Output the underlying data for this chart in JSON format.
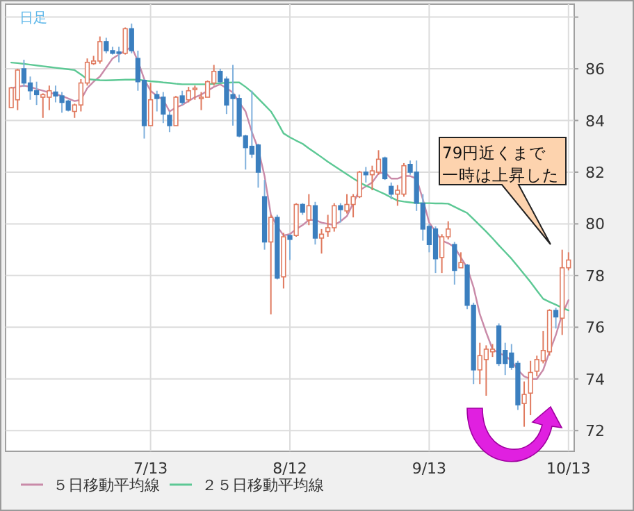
{
  "chart_data": {
    "type": "candlestick",
    "categories": [
      null,
      null,
      null,
      null,
      null,
      null,
      null,
      null,
      null,
      null,
      null,
      null,
      null,
      null,
      null,
      null,
      null,
      null,
      null,
      null,
      null,
      null,
      "7/13",
      null,
      null,
      null,
      null,
      null,
      null,
      null,
      null,
      null,
      null,
      null,
      null,
      null,
      null,
      null,
      null,
      null,
      null,
      null,
      null,
      null,
      "8/12",
      null,
      null,
      null,
      null,
      null,
      null,
      null,
      null,
      null,
      null,
      null,
      null,
      null,
      null,
      null,
      null,
      null,
      null,
      null,
      null,
      null,
      "9/13",
      null,
      null,
      null,
      null,
      null,
      null,
      null,
      null,
      null,
      null,
      null,
      null,
      null,
      null,
      null,
      null,
      null,
      null,
      null,
      null,
      null,
      "10/13"
    ],
    "ohlc": [
      [
        84.5,
        85.3,
        84.5,
        85.26
      ],
      [
        84.8,
        86.0,
        84.4,
        85.95
      ],
      [
        86.0,
        86.35,
        85.3,
        85.45
      ],
      [
        85.45,
        85.7,
        84.8,
        85.15
      ],
      [
        85.15,
        85.5,
        84.6,
        85.0
      ],
      [
        84.9,
        85.05,
        84.1,
        85.0
      ],
      [
        84.9,
        85.35,
        84.4,
        85.15
      ],
      [
        85.1,
        85.35,
        84.7,
        84.95
      ],
      [
        84.95,
        85.1,
        84.3,
        84.7
      ],
      [
        84.75,
        84.8,
        84.35,
        84.4
      ],
      [
        84.35,
        84.65,
        84.1,
        84.6
      ],
      [
        84.6,
        85.6,
        84.35,
        85.45
      ],
      [
        85.45,
        86.4,
        85.35,
        86.25
      ],
      [
        86.2,
        86.5,
        86.15,
        86.3
      ],
      [
        86.3,
        87.25,
        86.2,
        87.05
      ],
      [
        87.05,
        87.2,
        86.6,
        86.7
      ],
      [
        86.7,
        86.85,
        86.55,
        86.6
      ],
      [
        86.65,
        86.85,
        86.25,
        86.6
      ],
      [
        86.6,
        87.6,
        86.55,
        87.55
      ],
      [
        87.55,
        87.75,
        86.6,
        86.7
      ],
      [
        86.4,
        86.7,
        85.15,
        85.5
      ],
      [
        85.55,
        85.6,
        83.3,
        83.8
      ],
      [
        83.8,
        85.45,
        83.8,
        84.8
      ],
      [
        85.0,
        85.15,
        84.35,
        84.85
      ],
      [
        84.9,
        85.1,
        83.9,
        84.25
      ],
      [
        84.2,
        84.35,
        83.55,
        83.8
      ],
      [
        83.8,
        84.95,
        83.8,
        84.9
      ],
      [
        84.95,
        85.15,
        84.6,
        84.7
      ],
      [
        84.8,
        85.3,
        84.7,
        85.15
      ],
      [
        85.2,
        85.35,
        84.8,
        85.25
      ],
      [
        84.85,
        85.1,
        84.4,
        84.9
      ],
      [
        84.9,
        85.55,
        84.9,
        85.5
      ],
      [
        85.45,
        86.15,
        85.35,
        85.9
      ],
      [
        85.9,
        86.0,
        85.45,
        85.5
      ],
      [
        85.6,
        85.7,
        84.25,
        84.6
      ],
      [
        85.0,
        86.15,
        83.8,
        84.85
      ],
      [
        84.85,
        85.0,
        83.35,
        83.4
      ],
      [
        83.4,
        83.45,
        82.1,
        82.95
      ],
      [
        83.0,
        85.15,
        82.55,
        82.7
      ],
      [
        83.05,
        83.1,
        81.4,
        82.0
      ],
      [
        81.05,
        81.7,
        79.0,
        79.3
      ],
      [
        79.3,
        80.35,
        76.5,
        80.25
      ],
      [
        80.25,
        80.35,
        77.85,
        77.9
      ],
      [
        77.95,
        79.65,
        77.5,
        79.5
      ],
      [
        79.55,
        79.6,
        78.6,
        79.4
      ],
      [
        79.55,
        80.8,
        79.5,
        80.75
      ],
      [
        80.75,
        80.8,
        80.35,
        80.45
      ],
      [
        80.15,
        81.15,
        79.95,
        80.7
      ],
      [
        80.7,
        80.85,
        79.2,
        79.45
      ],
      [
        79.45,
        79.8,
        78.85,
        79.6
      ],
      [
        79.7,
        80.35,
        79.5,
        79.85
      ],
      [
        79.85,
        80.8,
        79.7,
        80.7
      ],
      [
        80.7,
        80.8,
        80.05,
        80.55
      ],
      [
        80.5,
        81.15,
        80.4,
        80.75
      ],
      [
        80.75,
        81.15,
        80.25,
        81.05
      ],
      [
        81.05,
        82.05,
        81.0,
        82.0
      ],
      [
        82.0,
        82.2,
        81.6,
        81.9
      ],
      [
        81.9,
        82.25,
        81.3,
        82.05
      ],
      [
        82.0,
        82.85,
        81.9,
        82.5
      ],
      [
        82.55,
        82.6,
        81.7,
        81.75
      ],
      [
        81.45,
        81.6,
        80.95,
        81.15
      ],
      [
        81.15,
        81.5,
        80.7,
        81.3
      ],
      [
        81.15,
        82.35,
        81.05,
        82.25
      ],
      [
        82.3,
        82.45,
        81.9,
        82.0
      ],
      [
        82.0,
        82.45,
        80.5,
        80.8
      ],
      [
        80.8,
        81.15,
        79.35,
        79.8
      ],
      [
        79.9,
        80.0,
        78.9,
        79.2
      ],
      [
        79.8,
        79.9,
        78.1,
        78.65
      ],
      [
        78.7,
        79.6,
        78.1,
        79.5
      ],
      [
        79.5,
        80.1,
        79.4,
        79.8
      ],
      [
        79.2,
        79.3,
        77.65,
        78.2
      ],
      [
        78.3,
        78.9,
        78.3,
        78.5
      ],
      [
        78.4,
        78.45,
        76.7,
        76.85
      ],
      [
        76.85,
        76.95,
        73.8,
        74.35
      ],
      [
        74.35,
        75.4,
        73.8,
        74.9
      ],
      [
        74.75,
        75.3,
        73.35,
        75.15
      ],
      [
        75.05,
        75.35,
        74.85,
        75.15
      ],
      [
        76.05,
        76.15,
        74.5,
        74.6
      ],
      [
        75.1,
        75.4,
        74.15,
        74.6
      ],
      [
        75.0,
        75.35,
        74.35,
        74.45
      ],
      [
        74.6,
        74.7,
        72.8,
        73.0
      ],
      [
        73.05,
        73.9,
        72.15,
        73.4
      ],
      [
        73.45,
        74.7,
        72.6,
        74.25
      ],
      [
        74.3,
        74.9,
        74.1,
        74.75
      ],
      [
        74.7,
        75.85,
        74.6,
        75.1
      ],
      [
        75.05,
        76.7,
        74.9,
        76.65
      ],
      [
        76.65,
        76.75,
        75.95,
        76.4
      ],
      [
        76.35,
        79.0,
        75.7,
        78.3
      ],
      [
        78.3,
        78.9,
        78.2,
        78.6
      ]
    ],
    "series": [
      {
        "type": "line",
        "name": "５日移動平均線",
        "color": "#c98aa8",
        "values": [
          85.25,
          85.3,
          85.35,
          85.3,
          85.22,
          85.15,
          85.08,
          85.02,
          84.95,
          84.85,
          84.75,
          84.8,
          85.25,
          85.5,
          85.7,
          86.05,
          86.4,
          86.55,
          86.7,
          86.85,
          86.3,
          85.6,
          85.15,
          84.95,
          84.8,
          84.35,
          84.5,
          84.6,
          84.75,
          84.9,
          85.0,
          85.15,
          85.3,
          85.4,
          85.25,
          85.08,
          84.7,
          84.35,
          83.55,
          82.9,
          81.85,
          80.35,
          79.9,
          79.55,
          79.6,
          79.8,
          79.95,
          80.15,
          80.15,
          80.05,
          80.0,
          79.95,
          80.1,
          80.3,
          80.8,
          81.3,
          81.45,
          81.6,
          81.95,
          82.0,
          81.75,
          81.75,
          81.85,
          81.85,
          81.75,
          80.95,
          80.05,
          79.7,
          79.35,
          79.25,
          79.1,
          78.7,
          78.3,
          77.55,
          76.5,
          75.8,
          75.15,
          75.0,
          74.9,
          74.7,
          74.35,
          74.1,
          74.0,
          74.0,
          74.35,
          75.05,
          75.7,
          76.5,
          77.05
        ]
      },
      {
        "type": "line",
        "name": "２５日移動平均線",
        "color": "#5cc894",
        "values": [
          86.24,
          86.22,
          86.19,
          86.16,
          86.13,
          86.1,
          86.07,
          86.04,
          86.01,
          85.98,
          85.95,
          85.78,
          85.6,
          85.58,
          85.56,
          85.55,
          85.56,
          85.57,
          85.58,
          85.58,
          85.58,
          85.55,
          85.52,
          85.5,
          85.47,
          85.45,
          85.42,
          85.4,
          85.4,
          85.4,
          85.4,
          85.4,
          85.42,
          85.44,
          85.46,
          85.47,
          85.47,
          85.3,
          85.1,
          84.85,
          84.6,
          84.35,
          83.95,
          83.5,
          83.35,
          83.22,
          83.1,
          82.92,
          82.75,
          82.58,
          82.4,
          82.24,
          82.08,
          81.92,
          81.76,
          81.6,
          81.48,
          81.37,
          81.26,
          81.15,
          81.02,
          80.9,
          80.86,
          80.83,
          80.8,
          80.8,
          80.8,
          80.79,
          80.79,
          80.78,
          80.66,
          80.54,
          80.42,
          80.18,
          79.94,
          79.7,
          79.44,
          79.17,
          78.91,
          78.65,
          78.35,
          78.05,
          77.75,
          77.42,
          77.1,
          76.98,
          76.87,
          76.75,
          76.65
        ]
      }
    ],
    "ylim": [
      71.2,
      88.5
    ],
    "yticks": [
      72,
      74,
      76,
      78,
      80,
      82,
      84,
      86,
      {
        "value": 88,
        "label": null
      }
    ],
    "grid": true,
    "legend": "bottom",
    "annotations": [
      "日足",
      "79円近くまで",
      "一時は上昇した"
    ]
  }
}
